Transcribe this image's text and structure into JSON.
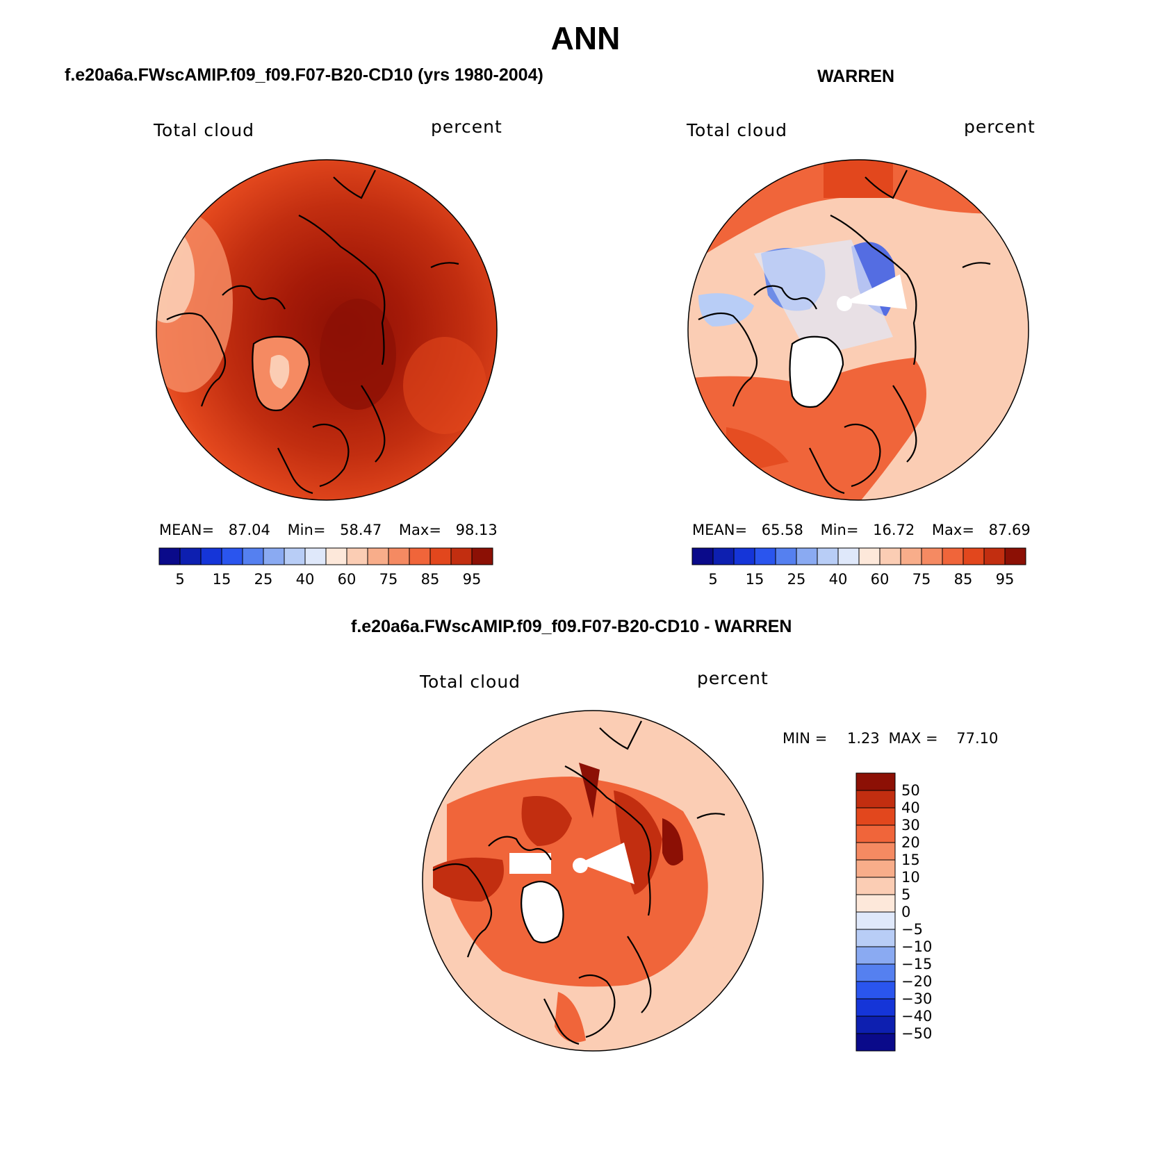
{
  "title": "ANN",
  "panels": {
    "model": {
      "case": "f.e20a6a.FWscAMIP.f09_f09.F07-B20-CD10 (yrs 1980-2004)",
      "variable": "Total cloud",
      "units": "percent",
      "stats": {
        "mean_label": "MEAN=",
        "mean": "87.04",
        "min_label": "Min=",
        "min": "58.47",
        "max_label": "Max=",
        "max": "98.13"
      }
    },
    "obs": {
      "case": "WARREN",
      "variable": "Total cloud",
      "units": "percent",
      "stats": {
        "mean_label": "MEAN=",
        "mean": "65.58",
        "min_label": "Min=",
        "min": "16.72",
        "max_label": "Max=",
        "max": "87.69"
      }
    },
    "diff": {
      "case": "f.e20a6a.FWscAMIP.f09_f09.F07-B20-CD10 - WARREN",
      "variable": "Total cloud",
      "units": "percent",
      "stats": {
        "min_label": "MIN =",
        "min": "1.23",
        "max_label": "MAX =",
        "max": "77.10"
      }
    }
  },
  "colorbar_abs": {
    "labels": [
      "5",
      "15",
      "25",
      "40",
      "60",
      "75",
      "85",
      "95"
    ],
    "colors": [
      "#0a0a8a",
      "#0d1fb0",
      "#1535d8",
      "#2a55ee",
      "#5580f0",
      "#8aaaf2",
      "#b8cdf6",
      "#dfe8fa",
      "#fde8da",
      "#fbcdb4",
      "#f8ad8a",
      "#f58a62",
      "#f0653a",
      "#e2471d",
      "#c22e10",
      "#8c1005"
    ]
  },
  "colorbar_diff": {
    "labels": [
      "50",
      "40",
      "30",
      "20",
      "15",
      "10",
      "5",
      "0",
      "−5",
      "−10",
      "−15",
      "−20",
      "−30",
      "−40",
      "−50"
    ],
    "colors": [
      "#8c1005",
      "#c22e10",
      "#e2471d",
      "#f0653a",
      "#f58a62",
      "#f8ad8a",
      "#fbcdb4",
      "#fde8da",
      "#dfe8fa",
      "#b8cdf6",
      "#8aaaf2",
      "#5580f0",
      "#2a55ee",
      "#1535d8",
      "#0d1fb0",
      "#0a0a8a"
    ]
  }
}
